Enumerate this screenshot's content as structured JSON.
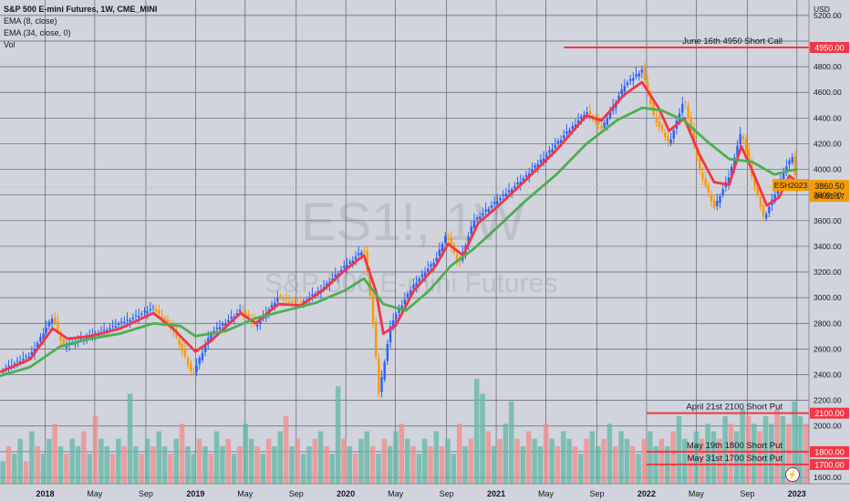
{
  "legend": {
    "title": "S&P 500 E-mini Futures, 1W, CME_MINI",
    "ema_fast": "EMA (8, close)",
    "ema_slow": "EMA (34, close, 0)",
    "vol": "Vol"
  },
  "watermark": {
    "symbol": "ES1!, 1W",
    "name": "S&P 500 E-mini Futures"
  },
  "colors": {
    "ema_fast": "#f23645",
    "ema_slow": "#4caf50",
    "candle_up": "#2962ff",
    "candle_down": "#ff9800",
    "vol_up": "#5fb8a4",
    "vol_down": "#f28b8b",
    "level": "#f23645",
    "last_price": "#f59b00"
  },
  "chart_data": {
    "type": "line",
    "currency_label": "USD",
    "x_tick_labels": [
      "2018",
      "May",
      "Sep",
      "2019",
      "May",
      "Sep",
      "2020",
      "May",
      "Sep",
      "2021",
      "May",
      "Sep",
      "2022",
      "May",
      "Sep",
      "2023"
    ],
    "x_tick_times": [
      2018.0,
      2018.33,
      2018.67,
      2019.0,
      2019.33,
      2019.67,
      2020.0,
      2020.33,
      2020.67,
      2021.0,
      2021.33,
      2021.67,
      2022.0,
      2022.33,
      2022.67,
      2023.0
    ],
    "ylim": [
      1550,
      5320
    ],
    "y_ticks": [
      1600,
      1800,
      2000,
      2200,
      2400,
      2600,
      2800,
      3000,
      3200,
      3400,
      3600,
      3800,
      4000,
      4200,
      4400,
      4600,
      4800,
      5000,
      5200
    ],
    "price_path": [
      [
        2017.7,
        2430
      ],
      [
        2017.9,
        2550
      ],
      [
        2018.05,
        2850
      ],
      [
        2018.12,
        2620
      ],
      [
        2018.3,
        2700
      ],
      [
        2018.5,
        2800
      ],
      [
        2018.72,
        2920
      ],
      [
        2018.85,
        2750
      ],
      [
        2018.98,
        2400
      ],
      [
        2019.1,
        2720
      ],
      [
        2019.3,
        2900
      ],
      [
        2019.4,
        2780
      ],
      [
        2019.55,
        3000
      ],
      [
        2019.7,
        2950
      ],
      [
        2019.85,
        3080
      ],
      [
        2020.0,
        3250
      ],
      [
        2020.12,
        3380
      ],
      [
        2020.17,
        2950
      ],
      [
        2020.22,
        2250
      ],
      [
        2020.3,
        2800
      ],
      [
        2020.45,
        3100
      ],
      [
        2020.6,
        3300
      ],
      [
        2020.67,
        3500
      ],
      [
        2020.75,
        3250
      ],
      [
        2020.85,
        3600
      ],
      [
        2021.0,
        3750
      ],
      [
        2021.2,
        3950
      ],
      [
        2021.4,
        4200
      ],
      [
        2021.6,
        4450
      ],
      [
        2021.7,
        4320
      ],
      [
        2021.85,
        4650
      ],
      [
        2021.97,
        4780
      ],
      [
        2022.05,
        4400
      ],
      [
        2022.15,
        4200
      ],
      [
        2022.25,
        4550
      ],
      [
        2022.35,
        4000
      ],
      [
        2022.45,
        3700
      ],
      [
        2022.55,
        3950
      ],
      [
        2022.63,
        4300
      ],
      [
        2022.7,
        3950
      ],
      [
        2022.78,
        3620
      ],
      [
        2022.85,
        3800
      ],
      [
        2022.92,
        4000
      ],
      [
        2022.97,
        4100
      ],
      [
        2023.0,
        3860.5
      ]
    ],
    "series": [
      {
        "name": "EMA (8, close)",
        "points": [
          [
            2017.7,
            2420
          ],
          [
            2017.9,
            2520
          ],
          [
            2018.05,
            2760
          ],
          [
            2018.15,
            2680
          ],
          [
            2018.3,
            2700
          ],
          [
            2018.5,
            2760
          ],
          [
            2018.72,
            2880
          ],
          [
            2018.85,
            2760
          ],
          [
            2019.0,
            2580
          ],
          [
            2019.1,
            2660
          ],
          [
            2019.3,
            2880
          ],
          [
            2019.4,
            2800
          ],
          [
            2019.55,
            2950
          ],
          [
            2019.7,
            2940
          ],
          [
            2019.85,
            3060
          ],
          [
            2020.0,
            3220
          ],
          [
            2020.12,
            3330
          ],
          [
            2020.2,
            3050
          ],
          [
            2020.25,
            2720
          ],
          [
            2020.33,
            2780
          ],
          [
            2020.45,
            3050
          ],
          [
            2020.6,
            3250
          ],
          [
            2020.68,
            3420
          ],
          [
            2020.78,
            3330
          ],
          [
            2020.88,
            3580
          ],
          [
            2021.0,
            3700
          ],
          [
            2021.2,
            3920
          ],
          [
            2021.4,
            4150
          ],
          [
            2021.6,
            4420
          ],
          [
            2021.7,
            4380
          ],
          [
            2021.85,
            4580
          ],
          [
            2021.97,
            4680
          ],
          [
            2022.08,
            4480
          ],
          [
            2022.15,
            4300
          ],
          [
            2022.25,
            4400
          ],
          [
            2022.35,
            4120
          ],
          [
            2022.45,
            3900
          ],
          [
            2022.55,
            3880
          ],
          [
            2022.63,
            4180
          ],
          [
            2022.7,
            4000
          ],
          [
            2022.8,
            3720
          ],
          [
            2022.88,
            3780
          ],
          [
            2022.95,
            3950
          ],
          [
            2023.0,
            3900
          ]
        ]
      },
      {
        "name": "EMA (34, close, 0)",
        "points": [
          [
            2017.7,
            2390
          ],
          [
            2017.9,
            2460
          ],
          [
            2018.1,
            2620
          ],
          [
            2018.3,
            2680
          ],
          [
            2018.5,
            2720
          ],
          [
            2018.72,
            2800
          ],
          [
            2018.9,
            2780
          ],
          [
            2019.0,
            2700
          ],
          [
            2019.2,
            2740
          ],
          [
            2019.4,
            2840
          ],
          [
            2019.6,
            2900
          ],
          [
            2019.8,
            2960
          ],
          [
            2020.0,
            3060
          ],
          [
            2020.12,
            3150
          ],
          [
            2020.25,
            2950
          ],
          [
            2020.4,
            2900
          ],
          [
            2020.55,
            3050
          ],
          [
            2020.7,
            3250
          ],
          [
            2020.85,
            3380
          ],
          [
            2021.0,
            3540
          ],
          [
            2021.2,
            3760
          ],
          [
            2021.4,
            3960
          ],
          [
            2021.6,
            4200
          ],
          [
            2021.8,
            4380
          ],
          [
            2021.97,
            4480
          ],
          [
            2022.1,
            4460
          ],
          [
            2022.25,
            4380
          ],
          [
            2022.4,
            4220
          ],
          [
            2022.55,
            4080
          ],
          [
            2022.7,
            4060
          ],
          [
            2022.85,
            3960
          ],
          [
            2022.95,
            3990
          ],
          [
            2023.0,
            4000
          ]
        ]
      }
    ],
    "volume_bars": [
      3,
      5,
      4,
      6,
      3,
      7,
      5,
      4,
      6,
      8,
      5,
      4,
      6,
      5,
      7,
      4,
      9,
      6,
      5,
      4,
      6,
      5,
      12,
      5,
      4,
      6,
      5,
      7,
      5,
      4,
      6,
      8,
      5,
      4,
      6,
      5,
      4,
      7,
      5,
      6,
      4,
      5,
      8,
      6,
      5,
      4,
      6,
      5,
      7,
      9,
      5,
      6,
      4,
      5,
      6,
      7,
      5,
      4,
      13,
      6,
      5,
      4,
      6,
      7,
      5,
      4,
      6,
      5,
      7,
      8,
      6,
      5,
      4,
      6,
      5,
      7,
      5,
      6,
      4,
      8,
      5,
      6,
      14,
      12,
      7,
      5,
      6,
      8,
      11,
      6,
      5,
      7,
      6,
      5,
      8,
      6,
      5,
      7,
      6,
      5,
      4,
      6,
      7,
      5,
      6,
      8,
      5,
      7,
      6,
      5,
      4,
      6,
      7,
      5,
      6,
      5,
      7,
      9,
      6,
      5,
      7,
      6,
      8,
      7,
      6,
      9,
      8,
      7,
      10,
      9,
      8,
      7,
      9,
      8,
      10,
      9,
      8,
      11,
      9,
      8
    ],
    "levels": [
      {
        "label": "June 16th 4950 Short Call",
        "value": 4950,
        "value_label": "4950.00",
        "x_start": 2021.45
      },
      {
        "label": "April 21st 2100 Short Put",
        "value": 2100,
        "value_label": "2100.00",
        "x_start": 2022.0
      },
      {
        "label": "May 19th 1800 Short Put",
        "value": 1800,
        "value_label": "1800.00",
        "x_start": 2022.0
      },
      {
        "label": "May 31st 1700 Short Put",
        "value": 1700,
        "value_label": "1700.00",
        "x_start": 2022.0
      }
    ],
    "last_price": {
      "symbol": "ESH2023",
      "value": 3860.5,
      "value_label": "3860.50",
      "countdown": "04:01:17"
    },
    "grid": true,
    "legend_position": "top-left"
  }
}
